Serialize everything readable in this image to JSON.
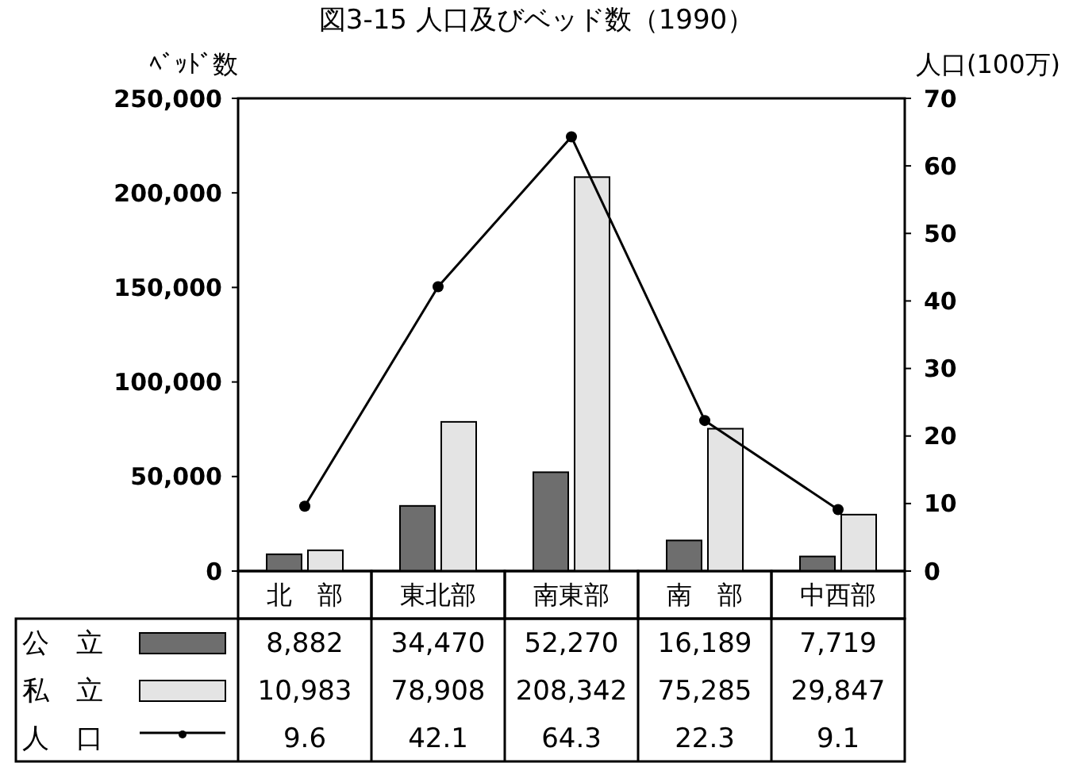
{
  "chart_data": {
    "type": "bar",
    "title": "図3-15 人口及びベッド数（1990）",
    "ylabel": "ﾍﾞｯﾄﾞ数",
    "y2label": "人口(100万)",
    "categories": [
      "北　部",
      "東北部",
      "南東部",
      "南　部",
      "中西部"
    ],
    "series": [
      {
        "name": "公　立",
        "color": "#6e6e6e",
        "values": [
          8882,
          34470,
          52270,
          16189,
          7719
        ],
        "value_labels": [
          "8,882",
          "34,470",
          "52,270",
          "16,189",
          "7,719"
        ]
      },
      {
        "name": "私　立",
        "color": "#e4e4e4",
        "values": [
          10983,
          78908,
          208342,
          75285,
          29847
        ],
        "value_labels": [
          "10,983",
          "78,908",
          "208,342",
          "75,285",
          "29,847"
        ]
      },
      {
        "name": "人　口",
        "type": "line",
        "axis": "y2",
        "color": "#000000",
        "marker": "circle",
        "values": [
          9.6,
          42.1,
          64.3,
          22.3,
          9.1
        ],
        "value_labels": [
          "9.6",
          "42.1",
          "64.3",
          "22.3",
          "9.1"
        ]
      }
    ],
    "ylim": [
      0,
      250000
    ],
    "yticks": [
      {
        "value": 0,
        "label": "0"
      },
      {
        "value": 50000,
        "label": "50,000"
      },
      {
        "value": 100000,
        "label": "100,000"
      },
      {
        "value": 150000,
        "label": "150,000"
      },
      {
        "value": 200000,
        "label": "200,000"
      },
      {
        "value": 250000,
        "label": "250,000"
      }
    ],
    "y2lim": [
      0,
      70
    ],
    "y2ticks": [
      0,
      10,
      20,
      30,
      40,
      50,
      60,
      70
    ],
    "legend": "bottom left"
  }
}
